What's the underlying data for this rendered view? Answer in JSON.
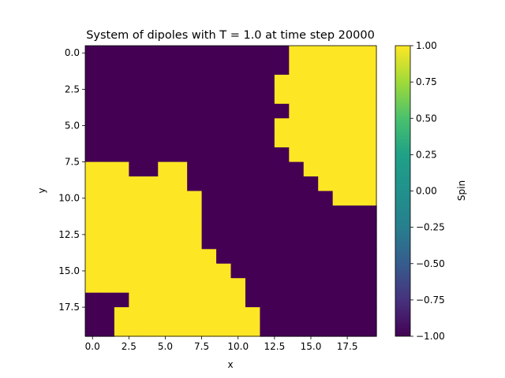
{
  "chart_data": {
    "type": "heatmap",
    "title": "System of dipoles with T = 1.0 at time step 20000",
    "xlabel": "x",
    "ylabel": "y",
    "x_ticks": [
      "0.0",
      "2.5",
      "5.0",
      "7.5",
      "10.0",
      "12.5",
      "15.0",
      "17.5"
    ],
    "y_ticks": [
      "0.0",
      "2.5",
      "5.0",
      "7.5",
      "10.0",
      "12.5",
      "15.0",
      "17.5"
    ],
    "xlim": [
      -0.5,
      19.5
    ],
    "ylim": [
      19.5,
      -0.5
    ],
    "colorbar": {
      "label": "Spin",
      "range": [
        -1.0,
        1.0
      ],
      "colormap": "viridis",
      "ticks": [
        "1.00",
        "0.75",
        "0.50",
        "0.25",
        "0.00",
        "−0.25",
        "−0.50",
        "−0.75",
        "−1.00"
      ]
    },
    "colors": {
      "low": "#440154",
      "high": "#fde725"
    },
    "grid": [
      [
        -1,
        -1,
        -1,
        -1,
        -1,
        -1,
        -1,
        -1,
        -1,
        -1,
        -1,
        -1,
        -1,
        -1,
        1,
        1,
        1,
        1,
        1,
        1
      ],
      [
        -1,
        -1,
        -1,
        -1,
        -1,
        -1,
        -1,
        -1,
        -1,
        -1,
        -1,
        -1,
        -1,
        -1,
        1,
        1,
        1,
        1,
        1,
        1
      ],
      [
        -1,
        -1,
        -1,
        -1,
        -1,
        -1,
        -1,
        -1,
        -1,
        -1,
        -1,
        -1,
        -1,
        1,
        1,
        1,
        1,
        1,
        1,
        1
      ],
      [
        -1,
        -1,
        -1,
        -1,
        -1,
        -1,
        -1,
        -1,
        -1,
        -1,
        -1,
        -1,
        -1,
        1,
        1,
        1,
        1,
        1,
        1,
        1
      ],
      [
        -1,
        -1,
        -1,
        -1,
        -1,
        -1,
        -1,
        -1,
        -1,
        -1,
        -1,
        -1,
        -1,
        -1,
        1,
        1,
        1,
        1,
        1,
        1
      ],
      [
        -1,
        -1,
        -1,
        -1,
        -1,
        -1,
        -1,
        -1,
        -1,
        -1,
        -1,
        -1,
        -1,
        1,
        1,
        1,
        1,
        1,
        1,
        1
      ],
      [
        -1,
        -1,
        -1,
        -1,
        -1,
        -1,
        -1,
        -1,
        -1,
        -1,
        -1,
        -1,
        -1,
        1,
        1,
        1,
        1,
        1,
        1,
        1
      ],
      [
        -1,
        -1,
        -1,
        -1,
        -1,
        -1,
        -1,
        -1,
        -1,
        -1,
        -1,
        -1,
        -1,
        -1,
        1,
        1,
        1,
        1,
        1,
        1
      ],
      [
        1,
        1,
        1,
        -1,
        -1,
        1,
        1,
        -1,
        -1,
        -1,
        -1,
        -1,
        -1,
        -1,
        -1,
        1,
        1,
        1,
        1,
        1
      ],
      [
        1,
        1,
        1,
        1,
        1,
        1,
        1,
        -1,
        -1,
        -1,
        -1,
        -1,
        -1,
        -1,
        -1,
        -1,
        1,
        1,
        1,
        1
      ],
      [
        1,
        1,
        1,
        1,
        1,
        1,
        1,
        1,
        -1,
        -1,
        -1,
        -1,
        -1,
        -1,
        -1,
        -1,
        -1,
        1,
        1,
        1
      ],
      [
        1,
        1,
        1,
        1,
        1,
        1,
        1,
        1,
        -1,
        -1,
        -1,
        -1,
        -1,
        -1,
        -1,
        -1,
        -1,
        -1,
        -1,
        -1
      ],
      [
        1,
        1,
        1,
        1,
        1,
        1,
        1,
        1,
        -1,
        -1,
        -1,
        -1,
        -1,
        -1,
        -1,
        -1,
        -1,
        -1,
        -1,
        -1
      ],
      [
        1,
        1,
        1,
        1,
        1,
        1,
        1,
        1,
        -1,
        -1,
        -1,
        -1,
        -1,
        -1,
        -1,
        -1,
        -1,
        -1,
        -1,
        -1
      ],
      [
        1,
        1,
        1,
        1,
        1,
        1,
        1,
        1,
        1,
        -1,
        -1,
        -1,
        -1,
        -1,
        -1,
        -1,
        -1,
        -1,
        -1,
        -1
      ],
      [
        1,
        1,
        1,
        1,
        1,
        1,
        1,
        1,
        1,
        1,
        -1,
        -1,
        -1,
        -1,
        -1,
        -1,
        -1,
        -1,
        -1,
        -1
      ],
      [
        1,
        1,
        1,
        1,
        1,
        1,
        1,
        1,
        1,
        1,
        1,
        -1,
        -1,
        -1,
        -1,
        -1,
        -1,
        -1,
        -1,
        -1
      ],
      [
        -1,
        -1,
        -1,
        1,
        1,
        1,
        1,
        1,
        1,
        1,
        1,
        -1,
        -1,
        -1,
        -1,
        -1,
        -1,
        -1,
        -1,
        -1
      ],
      [
        -1,
        -1,
        1,
        1,
        1,
        1,
        1,
        1,
        1,
        1,
        1,
        1,
        -1,
        -1,
        -1,
        -1,
        -1,
        -1,
        -1,
        -1
      ],
      [
        -1,
        -1,
        1,
        1,
        1,
        1,
        1,
        1,
        1,
        1,
        1,
        1,
        -1,
        -1,
        -1,
        -1,
        -1,
        -1,
        -1,
        -1
      ]
    ]
  }
}
